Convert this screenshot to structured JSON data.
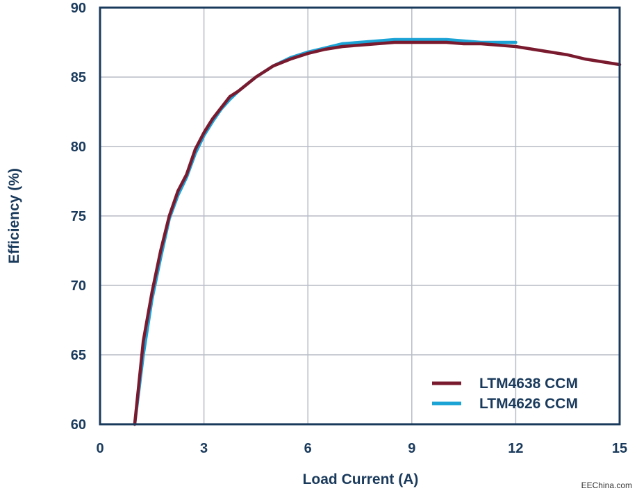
{
  "chart_data": {
    "type": "line",
    "xlabel": "Load Current (A)",
    "ylabel": "Efficiency (%)",
    "xlim": [
      0,
      15
    ],
    "ylim": [
      60,
      90
    ],
    "xticks": [
      "0",
      "3",
      "6",
      "9",
      "12",
      "15"
    ],
    "yticks": [
      "60",
      "65",
      "70",
      "75",
      "80",
      "85",
      "90"
    ],
    "grid": true,
    "legend_position": "bottom-right",
    "series": [
      {
        "name": "LTM4638 CCM",
        "color": "#7a1a2e",
        "x": [
          1.0,
          1.25,
          1.5,
          1.75,
          2.0,
          2.25,
          2.5,
          2.75,
          3.0,
          3.25,
          3.5,
          3.75,
          4.0,
          4.5,
          5.0,
          5.5,
          6.0,
          6.5,
          7.0,
          7.5,
          8.0,
          8.5,
          9.0,
          9.5,
          10.0,
          10.5,
          11.0,
          11.5,
          12.0,
          12.5,
          13.0,
          13.5,
          14.0,
          14.5,
          15.0
        ],
        "y": [
          60.0,
          66.0,
          69.5,
          72.5,
          75.0,
          76.8,
          78.0,
          79.8,
          81.0,
          82.0,
          82.8,
          83.6,
          84.0,
          85.0,
          85.8,
          86.3,
          86.7,
          87.0,
          87.2,
          87.3,
          87.4,
          87.5,
          87.5,
          87.5,
          87.5,
          87.4,
          87.4,
          87.3,
          87.2,
          87.0,
          86.8,
          86.6,
          86.3,
          86.1,
          85.9
        ]
      },
      {
        "name": "LTM4626 CCM",
        "color": "#1ba3d6",
        "x": [
          1.0,
          1.25,
          1.5,
          1.75,
          2.0,
          2.25,
          2.5,
          2.75,
          3.0,
          3.25,
          3.5,
          3.75,
          4.0,
          4.5,
          5.0,
          5.5,
          6.0,
          6.5,
          7.0,
          7.5,
          8.0,
          8.5,
          9.0,
          9.5,
          10.0,
          10.5,
          11.0,
          11.5,
          12.0
        ],
        "y": [
          59.5,
          65.0,
          69.0,
          72.0,
          74.8,
          76.5,
          77.8,
          79.5,
          80.8,
          81.8,
          82.7,
          83.4,
          84.0,
          85.0,
          85.8,
          86.4,
          86.8,
          87.1,
          87.4,
          87.5,
          87.6,
          87.7,
          87.7,
          87.7,
          87.7,
          87.6,
          87.5,
          87.5,
          87.5
        ]
      }
    ]
  },
  "watermark": "EEChina.com",
  "colors": {
    "axis": "#1a3a5c",
    "grid": "#b8bcc6",
    "text": "#1a3a5c"
  }
}
